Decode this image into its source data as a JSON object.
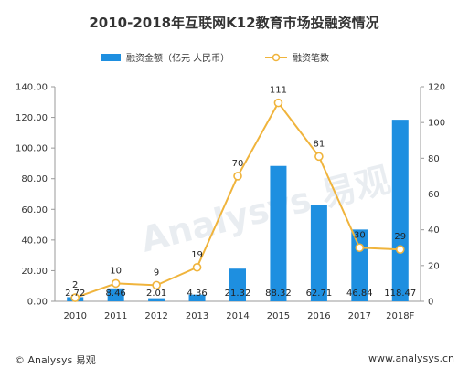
{
  "chart_data": {
    "type": "bar+line",
    "title": "2010-2018年互联网K12教育市场投融资情况",
    "categories": [
      "2010",
      "2011",
      "2012",
      "2013",
      "2014",
      "2015",
      "2016",
      "2017",
      "2018F"
    ],
    "series": [
      {
        "name": "融资金额（亿元 人民币）",
        "type": "bar",
        "axis": "left",
        "values": [
          2.72,
          8.46,
          2.01,
          4.36,
          21.32,
          88.32,
          62.71,
          46.84,
          118.47
        ],
        "labels": [
          "2.72",
          "8.46",
          "2.01",
          "4.36",
          "21.32",
          "88.32",
          "62.71",
          "46.84",
          "118.47"
        ],
        "color": "#1e8fe0"
      },
      {
        "name": "融资笔数",
        "type": "line",
        "axis": "right",
        "values": [
          2,
          10,
          9,
          19,
          70,
          111,
          81,
          30,
          29
        ],
        "labels": [
          "2",
          "10",
          "9",
          "19",
          "70",
          "111",
          "81",
          "30",
          "29"
        ],
        "color": "#f0b43c"
      }
    ],
    "left_axis": {
      "range": [
        0,
        140
      ],
      "ticks": [
        "0.00",
        "20.00",
        "40.00",
        "60.00",
        "80.00",
        "100.00",
        "120.00",
        "140.00"
      ]
    },
    "right_axis": {
      "range": [
        0,
        120
      ],
      "ticks": [
        "0",
        "20",
        "40",
        "60",
        "80",
        "100",
        "120"
      ]
    },
    "legend": "top",
    "grid": false,
    "watermark": "Analysys 易观"
  },
  "footer": {
    "left": "© Analysys 易观",
    "right": "www.analysys.cn"
  }
}
